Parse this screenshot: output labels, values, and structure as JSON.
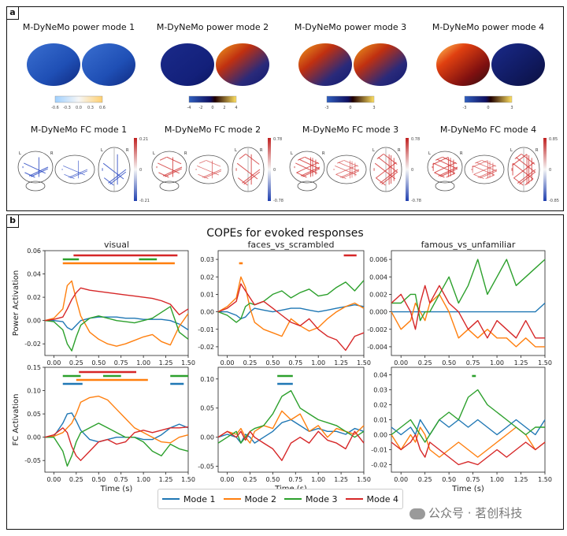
{
  "panel_a": {
    "label": "a",
    "power_titles": [
      "M-DyNeMo power mode 1",
      "M-DyNeMo power mode 2",
      "M-DyNeMo power mode 3",
      "M-DyNeMo power mode 4"
    ],
    "fc_titles": [
      "M-DyNeMo FC mode 1",
      "M-DyNeMo FC mode 2",
      "M-DyNeMo FC mode 3",
      "M-DyNeMo FC mode 4"
    ],
    "power_cbar_ticks": [
      [
        "-0.6",
        "-0.3",
        "0.0",
        "0.3",
        "0.6"
      ],
      [
        "-4",
        "-2",
        "0",
        "2",
        "4"
      ],
      [
        "-3",
        "0",
        "3"
      ],
      [
        "-3",
        "0",
        "3"
      ]
    ],
    "fc_cbar_ticks": [
      [
        "0.21",
        "0",
        "-0.21"
      ],
      [
        "0.78",
        "0",
        "-0.78"
      ],
      [
        "0.78",
        "0",
        "-0.78"
      ],
      [
        "0.85",
        "0",
        "-0.85"
      ]
    ],
    "glass_brain_letters": [
      "L",
      "R"
    ]
  },
  "panel_b": {
    "label": "b",
    "figure_title": "COPEs for evoked responses",
    "xlabel": "Time (s)",
    "row_labels": [
      "Power Activation",
      "FC Activation"
    ],
    "column_titles": [
      "visual",
      "faces_vs_scrambled",
      "famous_vs_unfamiliar"
    ],
    "legend": [
      {
        "name": "Mode 1",
        "color": "#1f77b4"
      },
      {
        "name": "Mode 2",
        "color": "#ff7f0e"
      },
      {
        "name": "Mode 3",
        "color": "#2ca02c"
      },
      {
        "name": "Mode 4",
        "color": "#d62728"
      }
    ]
  },
  "watermark": "公众号 · 茗创科技",
  "colors": {
    "mode1": "#1f77b4",
    "mode2": "#ff7f0e",
    "mode3": "#2ca02c",
    "mode4": "#d62728"
  },
  "chart_data": [
    {
      "type": "line",
      "title": "visual",
      "ylabel": "Power Activation",
      "xlabel": "Time (s)",
      "xlim": [
        -0.1,
        1.5
      ],
      "ylim": [
        -0.03,
        0.06
      ],
      "xticks": [
        "0.00",
        "0.25",
        "0.50",
        "0.75",
        "1.00",
        "1.25",
        "1.50"
      ],
      "yticks": [
        "-0.02",
        "0.00",
        "0.02",
        "0.04",
        "0.06"
      ],
      "x": [
        -0.1,
        0.0,
        0.1,
        0.15,
        0.2,
        0.25,
        0.3,
        0.4,
        0.5,
        0.6,
        0.7,
        0.8,
        0.9,
        1.0,
        1.1,
        1.2,
        1.3,
        1.4,
        1.5
      ],
      "series": [
        {
          "name": "Mode 1",
          "values": [
            0.0,
            0.0,
            -0.001,
            -0.006,
            -0.008,
            -0.004,
            0.0,
            0.002,
            0.003,
            0.003,
            0.003,
            0.002,
            0.002,
            0.001,
            0.001,
            0.001,
            0.0,
            -0.003,
            -0.008
          ]
        },
        {
          "name": "Mode 2",
          "values": [
            0.0,
            0.002,
            0.01,
            0.03,
            0.034,
            0.018,
            0.004,
            -0.01,
            -0.016,
            -0.02,
            -0.022,
            -0.02,
            -0.017,
            -0.014,
            -0.012,
            -0.018,
            -0.021,
            -0.005,
            0.006
          ]
        },
        {
          "name": "Mode 3",
          "values": [
            0.0,
            -0.001,
            -0.008,
            -0.02,
            -0.026,
            -0.014,
            -0.004,
            0.002,
            0.004,
            0.002,
            0.0,
            -0.001,
            -0.002,
            0.0,
            0.002,
            0.007,
            0.012,
            -0.01,
            -0.016
          ]
        },
        {
          "name": "Mode 4",
          "values": [
            0.0,
            0.001,
            0.003,
            0.01,
            0.018,
            0.024,
            0.028,
            0.026,
            0.025,
            0.024,
            0.023,
            0.022,
            0.021,
            0.02,
            0.019,
            0.017,
            0.014,
            0.005,
            0.01
          ]
        }
      ],
      "sig_bars": [
        {
          "mode": "Mode 4",
          "start": 0.22,
          "end": 1.38
        },
        {
          "mode": "Mode 3",
          "start": 0.1,
          "end": 0.28
        },
        {
          "mode": "Mode 3",
          "start": 0.95,
          "end": 1.15
        },
        {
          "mode": "Mode 2",
          "start": 0.1,
          "end": 1.35
        }
      ]
    },
    {
      "type": "line",
      "title": "faces_vs_scrambled",
      "ylabel": "",
      "xlabel": "Time (s)",
      "xlim": [
        -0.1,
        1.5
      ],
      "ylim": [
        -0.025,
        0.035
      ],
      "xticks": [
        "0.00",
        "0.25",
        "0.50",
        "0.75",
        "1.00",
        "1.25",
        "1.50"
      ],
      "yticks": [
        "-0.02",
        "-0.01",
        "0.00",
        "0.01",
        "0.02",
        "0.03"
      ],
      "x": [
        -0.1,
        0.0,
        0.1,
        0.15,
        0.2,
        0.25,
        0.3,
        0.4,
        0.5,
        0.6,
        0.7,
        0.8,
        0.9,
        1.0,
        1.1,
        1.2,
        1.3,
        1.4,
        1.5
      ],
      "series": [
        {
          "name": "Mode 1",
          "values": [
            0.0,
            0.0,
            -0.002,
            -0.004,
            -0.003,
            0.0,
            0.002,
            0.001,
            0.0,
            0.001,
            0.002,
            0.002,
            0.001,
            0.0,
            0.001,
            0.002,
            0.003,
            0.004,
            0.003
          ]
        },
        {
          "name": "Mode 2",
          "values": [
            0.0,
            0.003,
            0.008,
            0.02,
            0.014,
            0.002,
            -0.006,
            -0.01,
            -0.012,
            -0.014,
            -0.004,
            -0.008,
            -0.011,
            -0.009,
            -0.004,
            0.0,
            0.003,
            0.005,
            0.002
          ]
        },
        {
          "name": "Mode 3",
          "values": [
            0.0,
            -0.002,
            -0.006,
            -0.004,
            0.003,
            0.005,
            0.004,
            0.006,
            0.01,
            0.012,
            0.008,
            0.011,
            0.013,
            0.009,
            0.01,
            0.014,
            0.017,
            0.012,
            0.018
          ]
        },
        {
          "name": "Mode 4",
          "values": [
            0.0,
            0.002,
            0.006,
            0.016,
            0.012,
            0.008,
            0.004,
            0.006,
            0.002,
            -0.002,
            -0.006,
            -0.008,
            -0.004,
            -0.01,
            -0.014,
            -0.016,
            -0.022,
            -0.014,
            -0.012
          ]
        }
      ],
      "sig_bars": [
        {
          "mode": "Mode 4",
          "start": 1.28,
          "end": 1.42
        },
        {
          "mode": "Mode 2",
          "start": 0.13,
          "end": 0.17
        }
      ]
    },
    {
      "type": "line",
      "title": "famous_vs_unfamiliar",
      "ylabel": "",
      "xlabel": "Time (s)",
      "xlim": [
        -0.1,
        1.5
      ],
      "ylim": [
        -0.005,
        0.007
      ],
      "xticks": [
        "0.00",
        "0.25",
        "0.50",
        "0.75",
        "1.00",
        "1.25",
        "1.50"
      ],
      "yticks": [
        "-0.004",
        "-0.002",
        "0.000",
        "0.002",
        "0.004",
        "0.006"
      ],
      "x": [
        -0.1,
        0.0,
        0.1,
        0.15,
        0.2,
        0.25,
        0.3,
        0.4,
        0.5,
        0.6,
        0.7,
        0.8,
        0.9,
        1.0,
        1.1,
        1.2,
        1.3,
        1.4,
        1.5
      ],
      "series": [
        {
          "name": "Mode 1",
          "values": [
            0.0,
            0.0,
            0.0,
            0.0,
            0.0,
            0.0,
            0.0,
            0.0,
            0.0,
            0.0,
            0.0,
            0.0,
            0.0,
            0.0,
            0.0,
            0.0,
            0.0,
            0.0,
            0.001
          ]
        },
        {
          "name": "Mode 2",
          "values": [
            0.0,
            -0.002,
            -0.001,
            0.001,
            0.0,
            -0.001,
            0.001,
            0.002,
            0.0,
            -0.003,
            -0.002,
            -0.003,
            -0.002,
            -0.003,
            -0.003,
            -0.004,
            -0.003,
            -0.004,
            -0.004
          ]
        },
        {
          "name": "Mode 3",
          "values": [
            0.001,
            0.001,
            0.002,
            0.002,
            -0.001,
            0.0,
            0.0,
            0.002,
            0.004,
            0.001,
            0.003,
            0.006,
            0.002,
            0.004,
            0.006,
            0.003,
            0.004,
            0.005,
            0.006
          ]
        },
        {
          "name": "Mode 4",
          "values": [
            0.001,
            0.002,
            0.0,
            -0.002,
            0.001,
            0.003,
            0.001,
            0.003,
            0.001,
            0.0,
            -0.002,
            -0.001,
            -0.003,
            -0.001,
            -0.002,
            -0.003,
            -0.001,
            -0.003,
            -0.003
          ]
        }
      ],
      "sig_bars": []
    },
    {
      "type": "line",
      "title": "",
      "ylabel": "FC Activation",
      "xlabel": "Time (s)",
      "xlim": [
        -0.1,
        1.5
      ],
      "ylim": [
        -0.075,
        0.15
      ],
      "xticks": [
        "0.00",
        "0.25",
        "0.50",
        "0.75",
        "1.00",
        "1.25",
        "1.50"
      ],
      "yticks": [
        "-0.05",
        "0.00",
        "0.05",
        "0.10",
        "0.15"
      ],
      "x": [
        -0.1,
        0.0,
        0.1,
        0.15,
        0.2,
        0.25,
        0.3,
        0.4,
        0.5,
        0.6,
        0.7,
        0.8,
        0.9,
        1.0,
        1.1,
        1.2,
        1.3,
        1.4,
        1.5
      ],
      "series": [
        {
          "name": "Mode 1",
          "values": [
            0.0,
            0.002,
            0.03,
            0.05,
            0.052,
            0.035,
            0.015,
            -0.005,
            -0.01,
            -0.005,
            0.0,
            0.0,
            0.0,
            -0.005,
            -0.005,
            0.005,
            0.02,
            0.028,
            0.02
          ]
        },
        {
          "name": "Mode 2",
          "values": [
            0.0,
            0.002,
            0.01,
            0.02,
            0.03,
            0.05,
            0.075,
            0.085,
            0.088,
            0.08,
            0.06,
            0.04,
            0.02,
            0.01,
            0.0,
            -0.01,
            -0.012,
            0.0,
            0.005
          ]
        },
        {
          "name": "Mode 3",
          "values": [
            0.0,
            0.0,
            -0.03,
            -0.062,
            -0.04,
            -0.01,
            0.01,
            0.02,
            0.03,
            0.02,
            0.01,
            0.0,
            0.0,
            -0.01,
            -0.03,
            -0.04,
            -0.015,
            -0.025,
            -0.03
          ]
        },
        {
          "name": "Mode 4",
          "values": [
            0.0,
            0.005,
            0.02,
            0.01,
            -0.02,
            -0.04,
            -0.05,
            -0.03,
            -0.01,
            -0.005,
            -0.015,
            -0.01,
            0.01,
            0.015,
            0.01,
            0.015,
            0.02,
            0.02,
            0.022
          ]
        }
      ],
      "sig_bars": [
        {
          "mode": "Mode 4",
          "start": 0.28,
          "end": 0.92
        },
        {
          "mode": "Mode 3",
          "start": 0.1,
          "end": 0.3
        },
        {
          "mode": "Mode 3",
          "start": 0.55,
          "end": 0.75
        },
        {
          "mode": "Mode 3",
          "start": 1.3,
          "end": 1.5
        },
        {
          "mode": "Mode 2",
          "start": 0.25,
          "end": 1.05
        },
        {
          "mode": "Mode 1",
          "start": 0.1,
          "end": 0.32
        },
        {
          "mode": "Mode 1",
          "start": 1.3,
          "end": 1.45
        }
      ]
    },
    {
      "type": "line",
      "title": "",
      "ylabel": "",
      "xlabel": "Time (s)",
      "xlim": [
        -0.1,
        1.5
      ],
      "ylim": [
        -0.06,
        0.12
      ],
      "xticks": [
        "0.00",
        "0.25",
        "0.50",
        "0.75",
        "1.00",
        "1.25",
        "1.50"
      ],
      "yticks": [
        "-0.05",
        "0.00",
        "0.05",
        "0.10"
      ],
      "x": [
        -0.1,
        0.0,
        0.1,
        0.15,
        0.2,
        0.25,
        0.3,
        0.4,
        0.5,
        0.6,
        0.7,
        0.8,
        0.9,
        1.0,
        1.1,
        1.2,
        1.3,
        1.4,
        1.5
      ],
      "series": [
        {
          "name": "Mode 1",
          "values": [
            0.0,
            0.005,
            0.0,
            -0.01,
            0.005,
            0.0,
            -0.01,
            0.0,
            0.01,
            0.025,
            0.03,
            0.02,
            0.01,
            0.015,
            0.01,
            0.01,
            0.005,
            0.015,
            0.01
          ]
        },
        {
          "name": "Mode 2",
          "values": [
            0.0,
            0.01,
            0.005,
            0.015,
            0.0,
            -0.01,
            0.01,
            0.02,
            0.015,
            0.045,
            0.03,
            0.04,
            0.01,
            0.02,
            0.0,
            0.015,
            0.01,
            0.005,
            0.02
          ]
        },
        {
          "name": "Mode 3",
          "values": [
            -0.01,
            0.0,
            0.01,
            -0.01,
            0.0,
            0.01,
            0.015,
            0.02,
            0.04,
            0.07,
            0.08,
            0.05,
            0.04,
            0.03,
            0.025,
            0.02,
            0.01,
            0.0,
            0.01
          ]
        },
        {
          "name": "Mode 4",
          "values": [
            0.0,
            0.01,
            0.0,
            0.01,
            -0.005,
            0.01,
            0.0,
            -0.01,
            -0.02,
            -0.04,
            -0.01,
            0.0,
            -0.01,
            0.01,
            -0.005,
            -0.01,
            -0.02,
            0.01,
            -0.01
          ]
        }
      ],
      "sig_bars": [
        {
          "mode": "Mode 3",
          "start": 0.55,
          "end": 0.72
        },
        {
          "mode": "Mode 1",
          "start": 0.55,
          "end": 0.72
        }
      ]
    },
    {
      "type": "line",
      "title": "",
      "ylabel": "",
      "xlabel": "Time (s)",
      "xlim": [
        -0.1,
        1.5
      ],
      "ylim": [
        -0.025,
        0.045
      ],
      "xticks": [
        "0.00",
        "0.25",
        "0.50",
        "0.75",
        "1.00",
        "1.25",
        "1.50"
      ],
      "yticks": [
        "-0.02",
        "-0.01",
        "0.00",
        "0.01",
        "0.02",
        "0.03",
        "0.04"
      ],
      "x": [
        -0.1,
        0.0,
        0.1,
        0.15,
        0.2,
        0.25,
        0.3,
        0.4,
        0.5,
        0.6,
        0.7,
        0.8,
        0.9,
        1.0,
        1.1,
        1.2,
        1.3,
        1.4,
        1.5
      ],
      "series": [
        {
          "name": "Mode 1",
          "values": [
            0.005,
            0.0,
            0.005,
            0.0,
            0.01,
            0.005,
            0.0,
            0.01,
            0.005,
            0.01,
            0.005,
            0.01,
            0.005,
            0.0,
            0.005,
            0.01,
            0.005,
            0.0,
            0.01
          ]
        },
        {
          "name": "Mode 2",
          "values": [
            0.0,
            -0.01,
            0.0,
            -0.005,
            0.005,
            0.0,
            -0.01,
            -0.015,
            -0.01,
            -0.005,
            -0.01,
            -0.015,
            -0.01,
            -0.005,
            0.0,
            0.005,
            0.0,
            -0.01,
            -0.005
          ]
        },
        {
          "name": "Mode 3",
          "values": [
            0.0,
            0.005,
            0.01,
            0.005,
            0.0,
            -0.005,
            0.0,
            0.01,
            0.015,
            0.01,
            0.025,
            0.03,
            0.02,
            0.015,
            0.01,
            0.005,
            0.0,
            0.005,
            0.005
          ]
        },
        {
          "name": "Mode 4",
          "values": [
            -0.005,
            -0.01,
            -0.005,
            0.0,
            -0.01,
            -0.015,
            -0.005,
            -0.01,
            -0.015,
            -0.02,
            -0.018,
            -0.02,
            -0.015,
            -0.01,
            -0.015,
            -0.01,
            -0.005,
            -0.01,
            -0.005
          ]
        }
      ],
      "sig_bars": [
        {
          "mode": "Mode 3",
          "start": 0.74,
          "end": 0.78
        }
      ]
    }
  ]
}
